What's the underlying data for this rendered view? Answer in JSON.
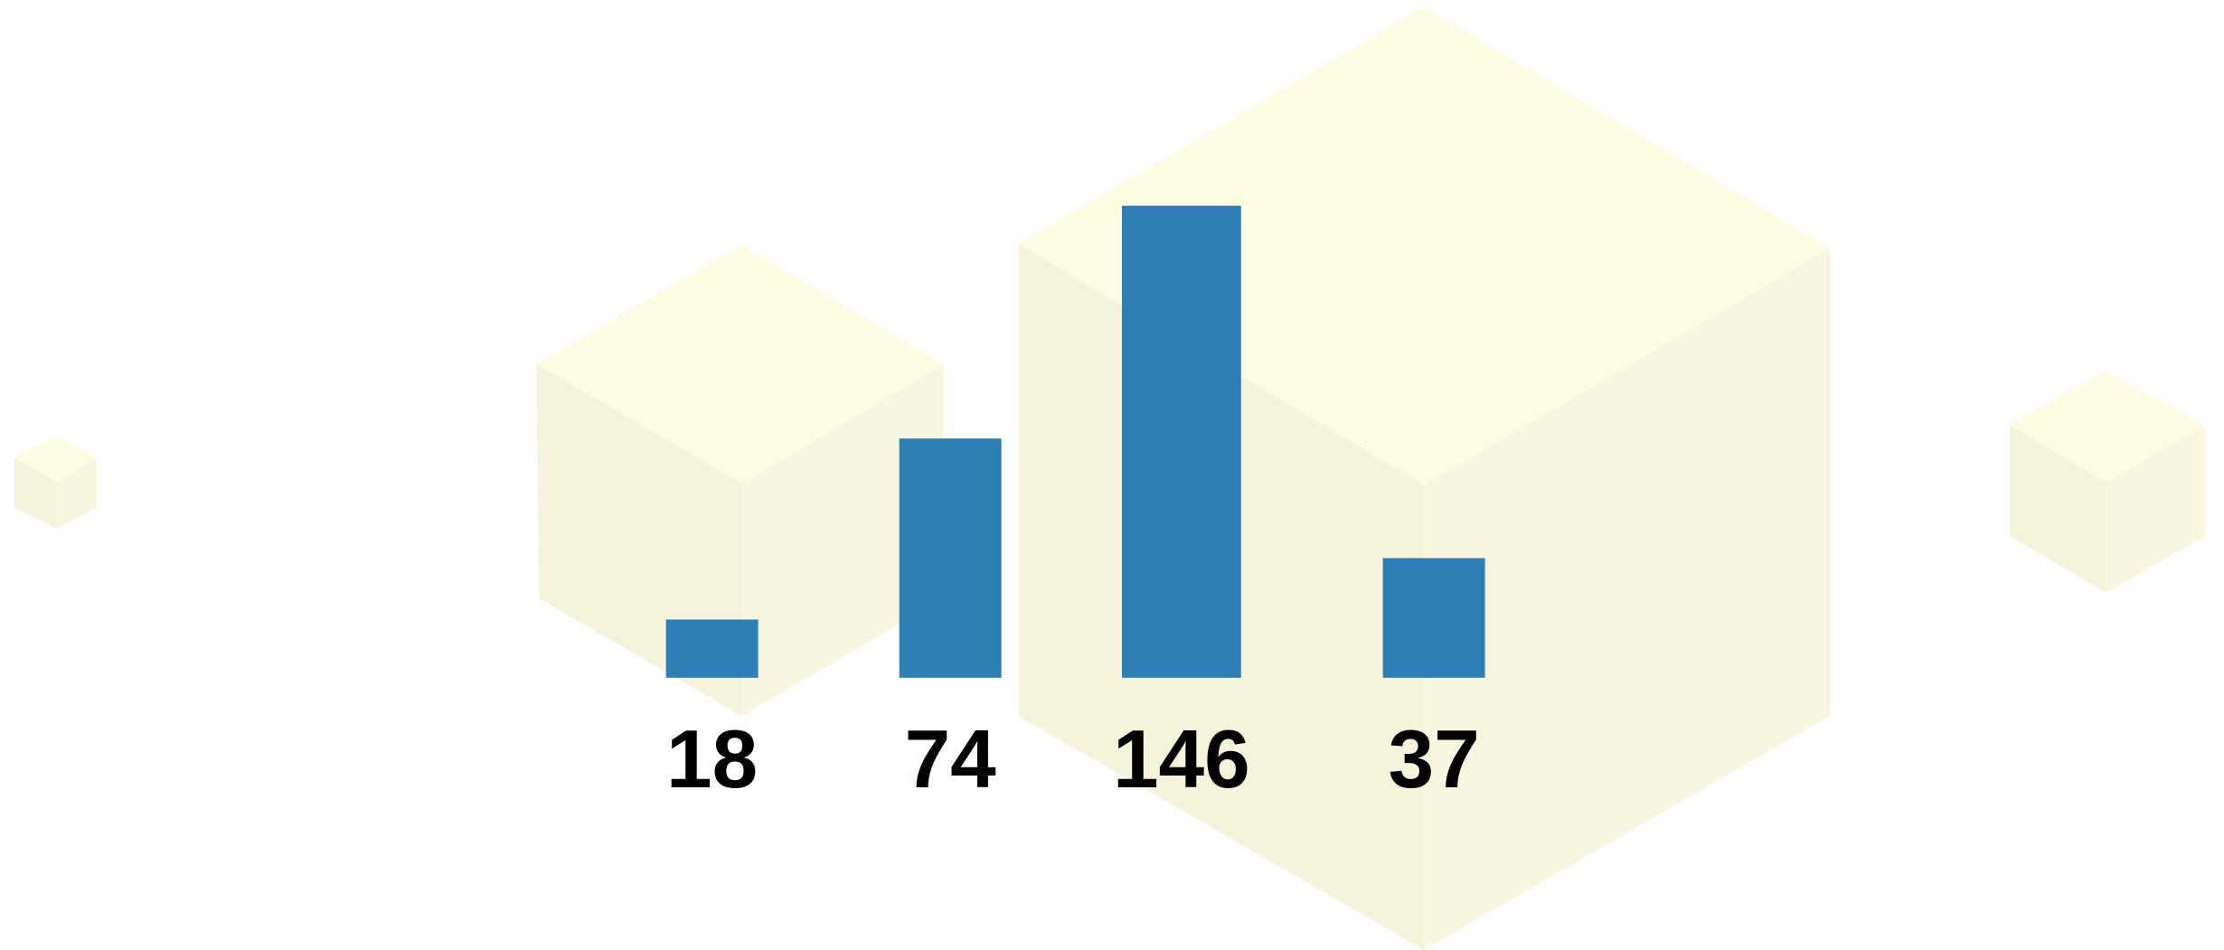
{
  "chart_data": {
    "type": "bar",
    "categories": [
      null,
      null,
      null,
      null
    ],
    "values": [
      18,
      74,
      146,
      37
    ],
    "color": "#2f7db5"
  }
}
